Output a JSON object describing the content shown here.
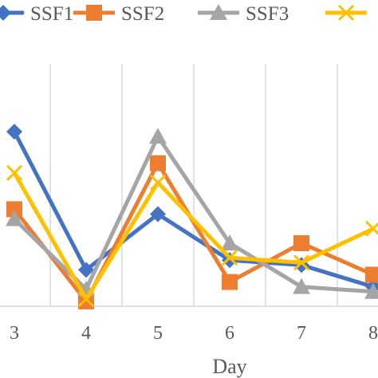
{
  "chart_data": {
    "type": "line",
    "xlabel": "Day",
    "ylabel": "",
    "categories": [
      "3",
      "4",
      "5",
      "6",
      "7",
      "8"
    ],
    "ylim": [
      0,
      100
    ],
    "grid": "vertical",
    "legend_position": "top",
    "series": [
      {
        "name": "SSF1",
        "color": "#4472C4",
        "marker": "diamond",
        "values": [
          72,
          15,
          38,
          19,
          17,
          8
        ]
      },
      {
        "name": "SSF2",
        "color": "#ED7D31",
        "marker": "square",
        "values": [
          40,
          2,
          59,
          10,
          26,
          13
        ]
      },
      {
        "name": "SSF3",
        "color": "#A5A5A5",
        "marker": "triangle",
        "values": [
          36,
          7,
          70,
          26,
          8,
          6
        ]
      },
      {
        "name": "",
        "color": "#FFC000",
        "marker": "x",
        "values": [
          55,
          3,
          51,
          20,
          18,
          32
        ]
      }
    ]
  }
}
